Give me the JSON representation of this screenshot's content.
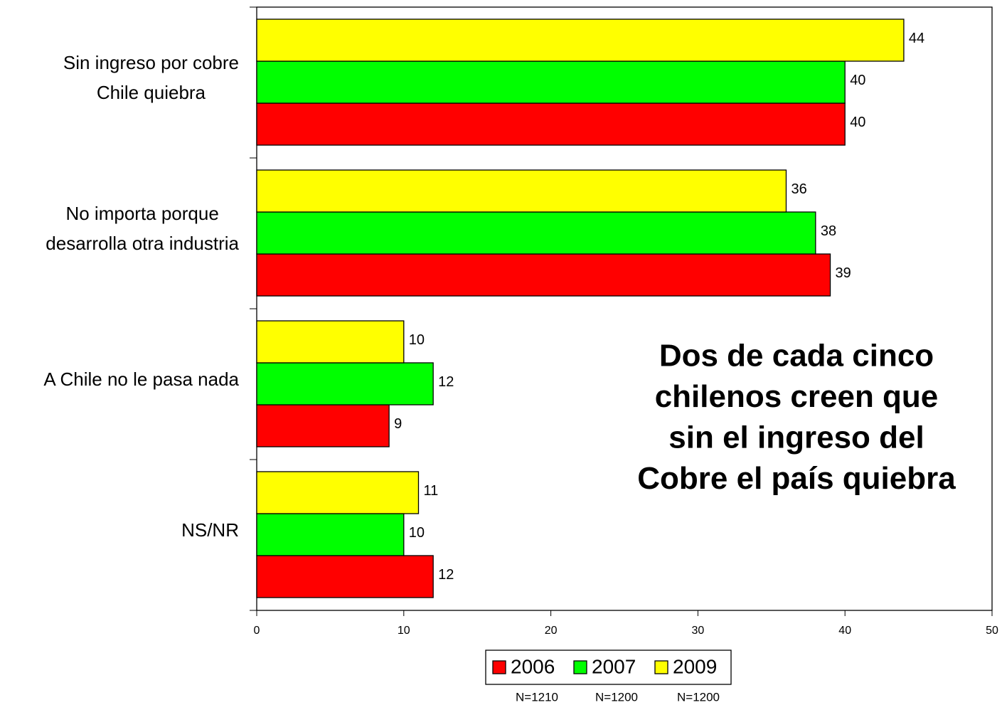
{
  "chart_data": {
    "type": "hbar",
    "categories": [
      [
        "Sin ingreso por cobre",
        "Chile quiebra"
      ],
      [
        "No importa porque",
        "desarrolla otra industria"
      ],
      [
        "A Chile no le pasa nada"
      ],
      [
        "NS/NR"
      ]
    ],
    "series": [
      {
        "name": "2006",
        "color": "#ff0000",
        "values": [
          40,
          39,
          9,
          12
        ]
      },
      {
        "name": "2007",
        "color": "#00ff00",
        "values": [
          40,
          38,
          12,
          10
        ]
      },
      {
        "name": "2009",
        "color": "#ffff00",
        "values": [
          44,
          36,
          10,
          11
        ]
      }
    ],
    "xlim": [
      0,
      50
    ],
    "xticks": [
      0,
      10,
      20,
      30,
      40,
      50
    ],
    "annotation": [
      "Dos de cada cinco",
      "chilenos creen que",
      "sin el ingreso del",
      "Cobre el país quiebra"
    ],
    "notes": [
      "N=1210",
      "N=1200",
      "N=1200"
    ],
    "legend": "bottom"
  }
}
